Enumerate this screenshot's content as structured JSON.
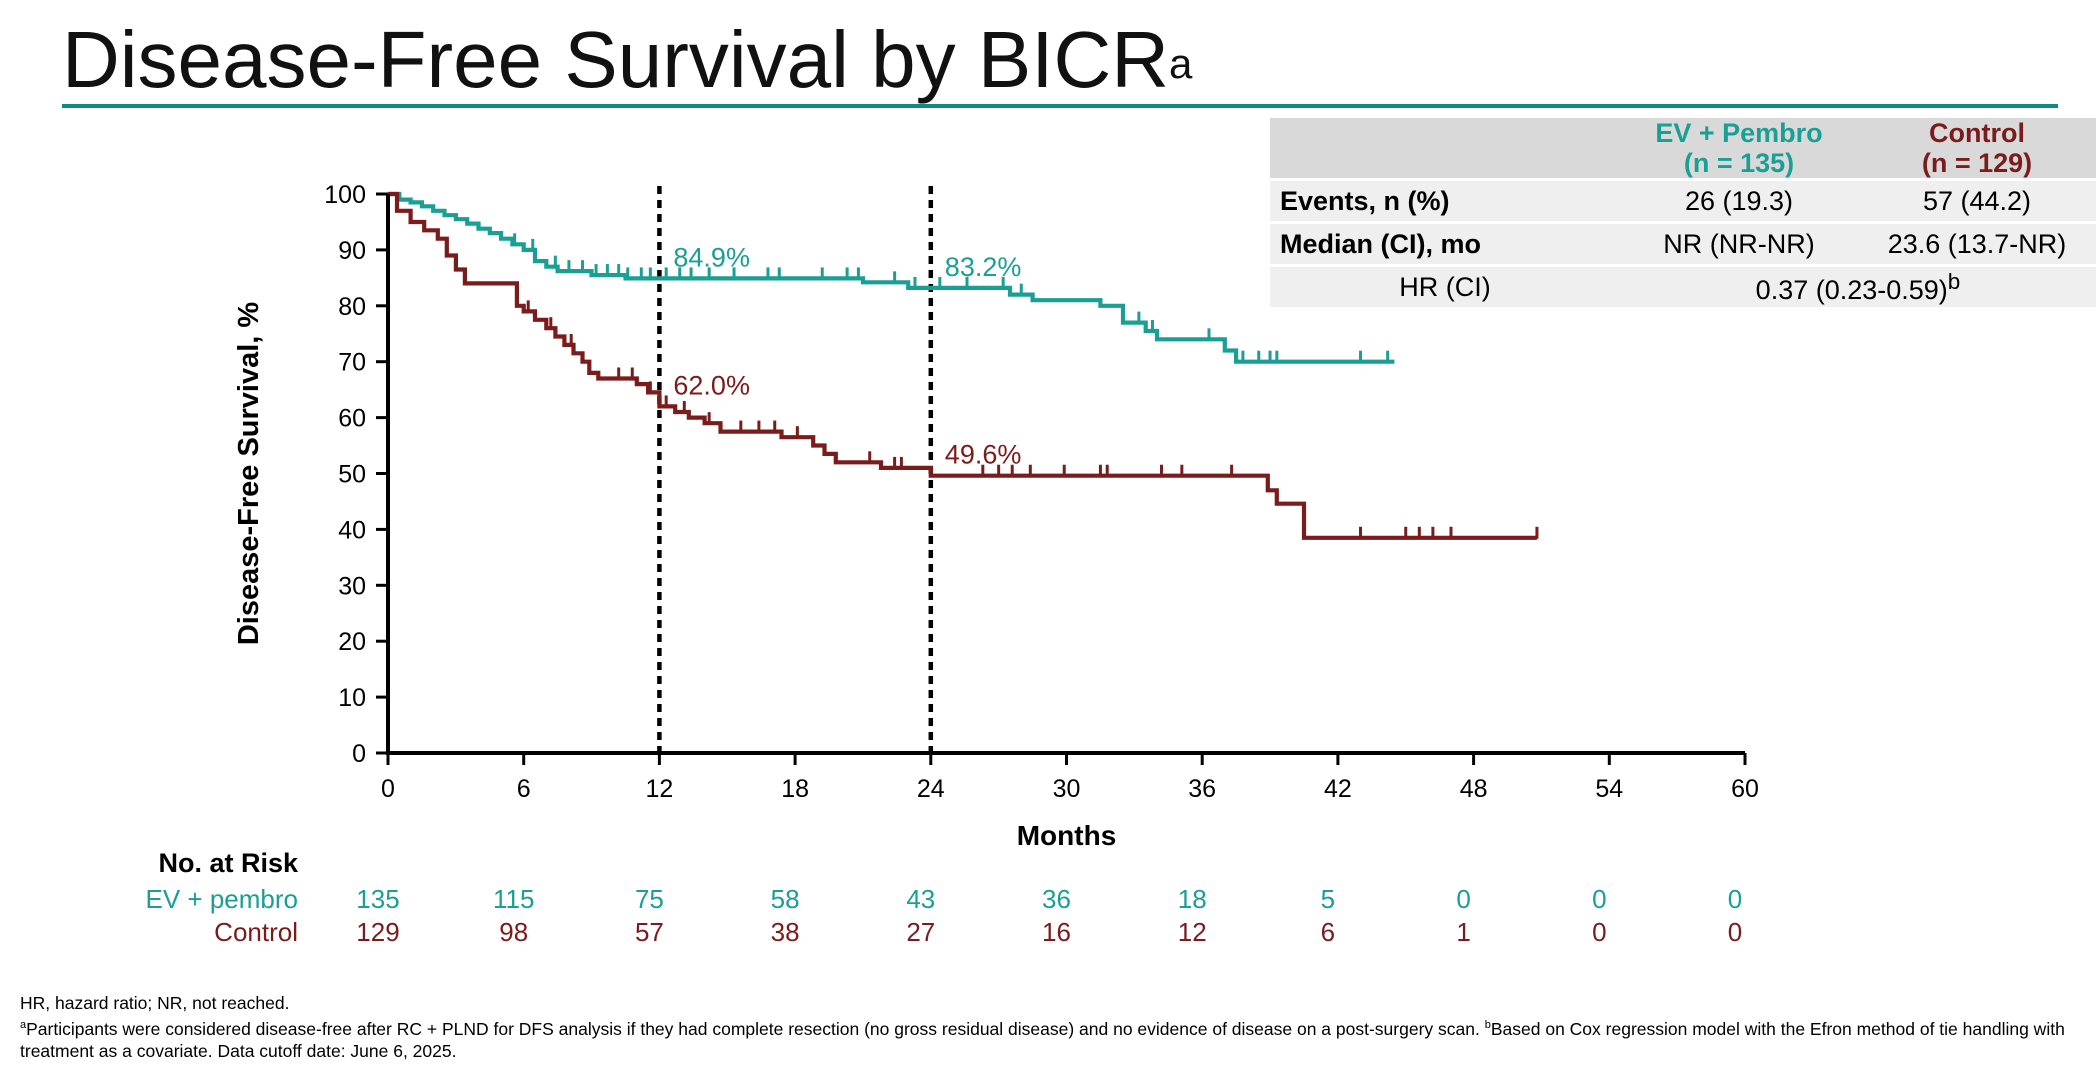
{
  "title": {
    "text": "Disease-Free Survival by BICR",
    "superscript": "a"
  },
  "table": {
    "headers": [
      {
        "line1": "EV + Pembro",
        "line2": "(n = 135)"
      },
      {
        "line1": "Control",
        "line2": "(n = 129)"
      }
    ],
    "rows": [
      {
        "label": "Events, n (%)",
        "ev": "26 (19.3)",
        "control": "57 (44.2)"
      },
      {
        "label": "Median (CI), mo",
        "ev": "NR (NR-NR)",
        "control": "23.6 (13.7-NR)"
      }
    ],
    "hr": {
      "label": "HR (CI)",
      "value": "0.37 (0.23-0.59)",
      "superscript": "b"
    }
  },
  "chart_data": {
    "type": "line",
    "subtype": "kaplan-meier step",
    "xlabel": "Months",
    "ylabel": "Disease-Free Survival, %",
    "xlim": [
      0,
      60
    ],
    "ylim": [
      0,
      100
    ],
    "xticks": [
      0,
      6,
      12,
      18,
      24,
      30,
      36,
      42,
      48,
      54,
      60
    ],
    "yticks": [
      0,
      10,
      20,
      30,
      40,
      50,
      60,
      70,
      80,
      90,
      100
    ],
    "reference_lines_x": [
      12,
      24
    ],
    "colors": {
      "ev": "#1a9f95",
      "control": "#7a1c1c",
      "axis": "#000000"
    },
    "series": [
      {
        "name": "EV + pembro",
        "color": "#1a9f95",
        "steps": [
          [
            0,
            100
          ],
          [
            0.5,
            99
          ],
          [
            1,
            98.5
          ],
          [
            1.5,
            97.8
          ],
          [
            2,
            97
          ],
          [
            2.5,
            96.2
          ],
          [
            3,
            95.5
          ],
          [
            3.5,
            94.7
          ],
          [
            4,
            93.8
          ],
          [
            4.5,
            93
          ],
          [
            5,
            92
          ],
          [
            5.5,
            91
          ],
          [
            6,
            90
          ],
          [
            6.5,
            88
          ],
          [
            7,
            87
          ],
          [
            7.5,
            86.2
          ],
          [
            9,
            85.5
          ],
          [
            10.5,
            84.9
          ],
          [
            21,
            84.2
          ],
          [
            23,
            83.2
          ],
          [
            27.5,
            82
          ],
          [
            28.5,
            81
          ],
          [
            31.5,
            80
          ],
          [
            32.5,
            77
          ],
          [
            33.5,
            75.5
          ],
          [
            34,
            74
          ],
          [
            37,
            72
          ],
          [
            37.5,
            70
          ],
          [
            43.5,
            70
          ]
        ],
        "end_x": 44.5,
        "censor_x": [
          5.6,
          6.4,
          7.4,
          8,
          8.6,
          9.2,
          9.7,
          10.2,
          10.6,
          11.2,
          11.6,
          12.3,
          12.9,
          13.4,
          14.2,
          15.3,
          16.8,
          17.3,
          19.2,
          20.3,
          20.8,
          22.4,
          23.3,
          24.4,
          25.6,
          27.2,
          28,
          33.2,
          33.8,
          36.3,
          37.8,
          38.5,
          39,
          39.3,
          43,
          44.2
        ],
        "annotations": [
          {
            "x": 12,
            "label": "84.9%"
          },
          {
            "x": 24,
            "label": "83.2%"
          }
        ]
      },
      {
        "name": "Control",
        "color": "#7a1c1c",
        "steps": [
          [
            0,
            100
          ],
          [
            0.4,
            97
          ],
          [
            1,
            95
          ],
          [
            1.6,
            93.5
          ],
          [
            2.2,
            92
          ],
          [
            2.6,
            89
          ],
          [
            3,
            86.5
          ],
          [
            3.4,
            84
          ],
          [
            5.7,
            80
          ],
          [
            6,
            79
          ],
          [
            6.5,
            77.5
          ],
          [
            7,
            76
          ],
          [
            7.4,
            74.5
          ],
          [
            7.8,
            73
          ],
          [
            8.2,
            71.5
          ],
          [
            8.6,
            70
          ],
          [
            8.9,
            68
          ],
          [
            9.3,
            67
          ],
          [
            11,
            66
          ],
          [
            11.5,
            64.5
          ],
          [
            12,
            62
          ],
          [
            12.7,
            61
          ],
          [
            13.3,
            60
          ],
          [
            14,
            59
          ],
          [
            14.7,
            57.5
          ],
          [
            17.4,
            56.5
          ],
          [
            18.8,
            55
          ],
          [
            19.3,
            53.5
          ],
          [
            19.8,
            52
          ],
          [
            21.8,
            51
          ],
          [
            24,
            49.6
          ],
          [
            38.9,
            47
          ],
          [
            39.3,
            44.6
          ],
          [
            40.5,
            38.5
          ]
        ],
        "end_x": 50.8,
        "censor_x": [
          6.2,
          7.2,
          8.1,
          10.2,
          10.8,
          11.6,
          12.3,
          13.1,
          14.2,
          15.6,
          16.4,
          17.1,
          18.1,
          21.3,
          22.4,
          22.7,
          26.3,
          27,
          27.6,
          28.4,
          29.9,
          31.5,
          31.8,
          34.2,
          35.1,
          37.3,
          43,
          45,
          45.6,
          46.2,
          47,
          50.8
        ],
        "annotations": [
          {
            "x": 12,
            "label": "62.0%"
          },
          {
            "x": 24,
            "label": "49.6%"
          }
        ]
      }
    ],
    "risk_table": {
      "title": "No. at Risk",
      "times": [
        0,
        6,
        12,
        18,
        24,
        30,
        36,
        42,
        48,
        54,
        60
      ],
      "rows": [
        {
          "label": "EV + pembro",
          "values": [
            135,
            115,
            75,
            58,
            43,
            36,
            18,
            5,
            0,
            0,
            0
          ]
        },
        {
          "label": "Control",
          "values": [
            129,
            98,
            57,
            38,
            27,
            16,
            12,
            6,
            1,
            0,
            0
          ]
        }
      ]
    }
  },
  "footnotes": {
    "abbrev": "HR, hazard ratio; NR, not reached.",
    "a_mark": "a",
    "a_text": "Participants were considered disease-free after RC + PLND for DFS analysis if they had complete resection (no gross residual disease) and no evidence of disease on a post-surgery scan.",
    "b_mark": "b",
    "b_text": "Based on Cox regression model with the Efron method of tie handling with treatment as a covariate. Data cutoff date: June 6, 2025."
  }
}
